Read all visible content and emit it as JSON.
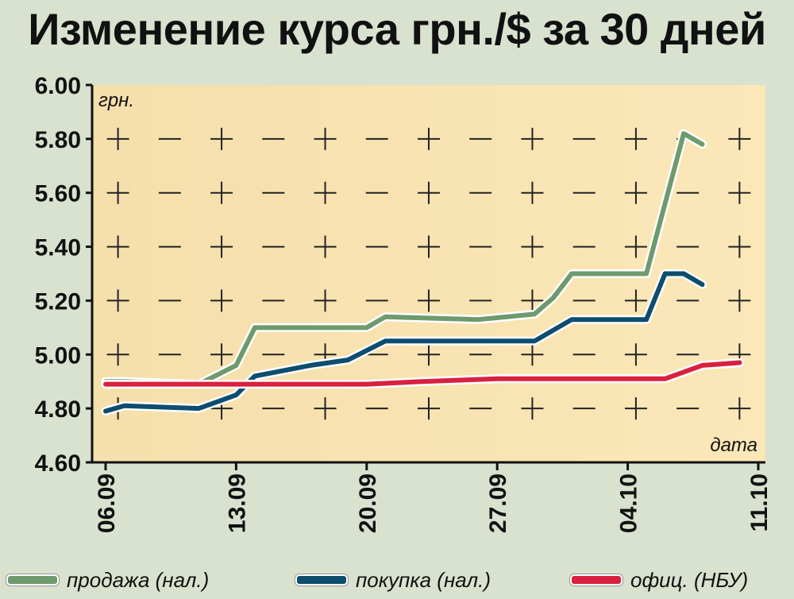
{
  "chart_data": {
    "type": "line",
    "title": "Изменение курса грн./$ за 30 дней",
    "ylabel": "грн.",
    "xlabel": "дата",
    "ylim": [
      4.6,
      6.0
    ],
    "yticks": [
      "6.00",
      "5.80",
      "5.60",
      "5.40",
      "5.20",
      "5.00",
      "4.80",
      "4.60"
    ],
    "xlim": [
      0,
      35
    ],
    "xticks": [
      {
        "label": "06.09",
        "x": 0
      },
      {
        "label": "13.09",
        "x": 7
      },
      {
        "label": "20.09",
        "x": 14
      },
      {
        "label": "27.09",
        "x": 21
      },
      {
        "label": "04.10",
        "x": 28
      },
      {
        "label": "11.10",
        "x": 35
      }
    ],
    "grid": true,
    "legend_position": "bottom",
    "series": [
      {
        "name": "продажа (нал.)",
        "color": "#6f9a6d",
        "points": [
          [
            0,
            4.9
          ],
          [
            1,
            4.9
          ],
          [
            5,
            4.89
          ],
          [
            7,
            4.96
          ],
          [
            8,
            5.1
          ],
          [
            11,
            5.1
          ],
          [
            14,
            5.1
          ],
          [
            15,
            5.14
          ],
          [
            20,
            5.13
          ],
          [
            23,
            5.15
          ],
          [
            24,
            5.21
          ],
          [
            25,
            5.3
          ],
          [
            29,
            5.3
          ],
          [
            31,
            5.82
          ],
          [
            32,
            5.78
          ]
        ]
      },
      {
        "name": "покупка (нал.)",
        "color": "#0d4d6e",
        "points": [
          [
            0,
            4.79
          ],
          [
            1,
            4.81
          ],
          [
            5,
            4.8
          ],
          [
            7,
            4.85
          ],
          [
            8,
            4.92
          ],
          [
            11,
            4.96
          ],
          [
            13,
            4.98
          ],
          [
            15,
            5.05
          ],
          [
            20,
            5.05
          ],
          [
            23,
            5.05
          ],
          [
            25,
            5.13
          ],
          [
            29,
            5.13
          ],
          [
            30,
            5.3
          ],
          [
            31,
            5.3
          ],
          [
            32,
            5.26
          ]
        ]
      },
      {
        "name": "офиц. (НБУ)",
        "color": "#d9203f",
        "points": [
          [
            0,
            4.89
          ],
          [
            7,
            4.89
          ],
          [
            14,
            4.89
          ],
          [
            17,
            4.9
          ],
          [
            21,
            4.91
          ],
          [
            28,
            4.91
          ],
          [
            30,
            4.91
          ],
          [
            32,
            4.96
          ],
          [
            34,
            4.97
          ]
        ]
      }
    ]
  },
  "legend": {
    "items": [
      "продажа (нал.)",
      "покупка (нал.)",
      "офиц. (НБУ)"
    ]
  }
}
